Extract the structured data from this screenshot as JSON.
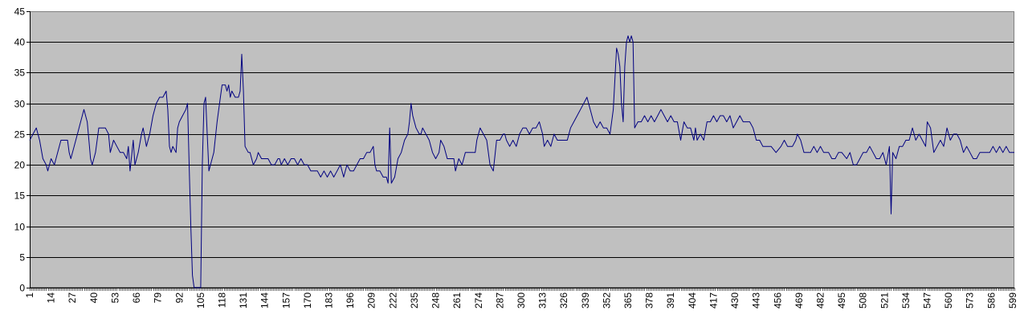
{
  "chart_data": {
    "type": "line",
    "title": "",
    "xlabel": "",
    "ylabel": "",
    "xlim": [
      1,
      600
    ],
    "ylim": [
      0,
      45
    ],
    "y_ticks": [
      0,
      5,
      10,
      15,
      20,
      25,
      30,
      35,
      40,
      45
    ],
    "x_tick_labels": [
      1,
      14,
      27,
      40,
      53,
      66,
      79,
      92,
      105,
      118,
      131,
      144,
      157,
      170,
      183,
      196,
      209,
      222,
      235,
      248,
      261,
      274,
      287,
      300,
      313,
      326,
      339,
      352,
      365,
      378,
      391,
      404,
      417,
      430,
      443,
      456,
      469,
      482,
      495,
      508,
      521,
      534,
      547,
      560,
      573,
      586,
      599
    ],
    "x_tick_step": 1,
    "x_label_step": 13,
    "grid": "horizontal",
    "legend": "none",
    "plot_background": "#c0c0c0",
    "line_color": "#000080",
    "series_keypoints": [
      [
        1,
        24
      ],
      [
        3,
        25
      ],
      [
        5,
        26
      ],
      [
        7,
        24
      ],
      [
        9,
        21
      ],
      [
        11,
        20
      ],
      [
        12,
        19
      ],
      [
        14,
        21
      ],
      [
        16,
        20
      ],
      [
        18,
        22
      ],
      [
        20,
        24
      ],
      [
        22,
        24
      ],
      [
        24,
        24
      ],
      [
        25,
        22
      ],
      [
        26,
        21
      ],
      [
        28,
        23
      ],
      [
        30,
        25
      ],
      [
        32,
        27
      ],
      [
        34,
        29
      ],
      [
        36,
        27
      ],
      [
        37,
        24
      ],
      [
        38,
        21
      ],
      [
        39,
        20
      ],
      [
        41,
        22
      ],
      [
        43,
        26
      ],
      [
        45,
        26
      ],
      [
        47,
        26
      ],
      [
        49,
        25
      ],
      [
        50,
        22
      ],
      [
        52,
        24
      ],
      [
        54,
        23
      ],
      [
        56,
        22
      ],
      [
        58,
        22
      ],
      [
        60,
        21
      ],
      [
        61,
        23
      ],
      [
        62,
        19
      ],
      [
        64,
        24
      ],
      [
        65,
        20
      ],
      [
        67,
        22
      ],
      [
        69,
        25
      ],
      [
        70,
        26
      ],
      [
        72,
        23
      ],
      [
        74,
        25
      ],
      [
        76,
        28
      ],
      [
        78,
        30
      ],
      [
        80,
        31
      ],
      [
        82,
        31
      ],
      [
        84,
        32
      ],
      [
        85,
        29
      ],
      [
        86,
        23
      ],
      [
        87,
        22
      ],
      [
        88,
        23
      ],
      [
        90,
        22
      ],
      [
        91,
        26
      ],
      [
        92,
        27
      ],
      [
        94,
        28
      ],
      [
        96,
        29
      ],
      [
        97,
        30
      ],
      [
        98,
        20
      ],
      [
        99,
        10
      ],
      [
        100,
        2
      ],
      [
        101,
        0
      ],
      [
        102,
        0
      ],
      [
        103,
        0
      ],
      [
        104,
        0
      ],
      [
        105,
        0
      ],
      [
        106,
        20
      ],
      [
        107,
        30
      ],
      [
        108,
        31
      ],
      [
        109,
        25
      ],
      [
        110,
        19
      ],
      [
        111,
        20
      ],
      [
        113,
        22
      ],
      [
        115,
        27
      ],
      [
        117,
        31
      ],
      [
        118,
        33
      ],
      [
        120,
        33
      ],
      [
        121,
        32
      ],
      [
        122,
        33
      ],
      [
        123,
        31
      ],
      [
        124,
        32
      ],
      [
        126,
        31
      ],
      [
        128,
        31
      ],
      [
        129,
        32
      ],
      [
        130,
        38
      ],
      [
        131,
        32
      ],
      [
        132,
        23
      ],
      [
        134,
        22
      ],
      [
        135,
        22
      ],
      [
        137,
        20
      ],
      [
        139,
        21
      ],
      [
        140,
        22
      ],
      [
        142,
        21
      ],
      [
        146,
        21
      ],
      [
        148,
        20
      ],
      [
        150,
        20
      ],
      [
        152,
        21
      ],
      [
        153,
        21
      ],
      [
        154,
        20
      ],
      [
        156,
        21
      ],
      [
        158,
        20
      ],
      [
        160,
        21
      ],
      [
        162,
        21
      ],
      [
        164,
        20
      ],
      [
        166,
        21
      ],
      [
        168,
        20
      ],
      [
        170,
        20
      ],
      [
        172,
        19
      ],
      [
        176,
        19
      ],
      [
        178,
        18
      ],
      [
        180,
        19
      ],
      [
        182,
        18
      ],
      [
        184,
        19
      ],
      [
        186,
        18
      ],
      [
        188,
        19
      ],
      [
        190,
        20
      ],
      [
        192,
        18
      ],
      [
        194,
        20
      ],
      [
        196,
        19
      ],
      [
        198,
        19
      ],
      [
        200,
        20
      ],
      [
        202,
        21
      ],
      [
        204,
        21
      ],
      [
        206,
        22
      ],
      [
        208,
        22
      ],
      [
        210,
        23
      ],
      [
        211,
        20
      ],
      [
        212,
        19
      ],
      [
        214,
        19
      ],
      [
        216,
        18
      ],
      [
        218,
        18
      ],
      [
        219,
        17
      ],
      [
        220,
        26
      ],
      [
        221,
        17
      ],
      [
        223,
        18
      ],
      [
        225,
        21
      ],
      [
        227,
        22
      ],
      [
        229,
        24
      ],
      [
        231,
        25
      ],
      [
        232,
        27
      ],
      [
        233,
        30
      ],
      [
        234,
        28
      ],
      [
        236,
        26
      ],
      [
        238,
        25
      ],
      [
        239,
        25
      ],
      [
        240,
        26
      ],
      [
        242,
        25
      ],
      [
        244,
        24
      ],
      [
        246,
        22
      ],
      [
        248,
        21
      ],
      [
        250,
        22
      ],
      [
        251,
        24
      ],
      [
        253,
        23
      ],
      [
        255,
        21
      ],
      [
        257,
        21
      ],
      [
        259,
        21
      ],
      [
        260,
        19
      ],
      [
        262,
        21
      ],
      [
        264,
        20
      ],
      [
        266,
        22
      ],
      [
        270,
        22
      ],
      [
        272,
        22
      ],
      [
        273,
        24
      ],
      [
        275,
        26
      ],
      [
        277,
        25
      ],
      [
        279,
        24
      ],
      [
        281,
        20
      ],
      [
        283,
        19
      ],
      [
        285,
        24
      ],
      [
        287,
        24
      ],
      [
        289,
        25
      ],
      [
        290,
        25
      ],
      [
        291,
        24
      ],
      [
        293,
        23
      ],
      [
        295,
        24
      ],
      [
        297,
        23
      ],
      [
        299,
        25
      ],
      [
        301,
        26
      ],
      [
        303,
        26
      ],
      [
        305,
        25
      ],
      [
        307,
        26
      ],
      [
        309,
        26
      ],
      [
        311,
        27
      ],
      [
        313,
        25
      ],
      [
        314,
        23
      ],
      [
        316,
        24
      ],
      [
        318,
        23
      ],
      [
        320,
        25
      ],
      [
        322,
        24
      ],
      [
        324,
        24
      ],
      [
        326,
        24
      ],
      [
        328,
        24
      ],
      [
        330,
        26
      ],
      [
        332,
        27
      ],
      [
        334,
        28
      ],
      [
        336,
        29
      ],
      [
        338,
        30
      ],
      [
        340,
        31
      ],
      [
        342,
        29
      ],
      [
        344,
        27
      ],
      [
        346,
        26
      ],
      [
        348,
        27
      ],
      [
        350,
        26
      ],
      [
        352,
        26
      ],
      [
        354,
        25
      ],
      [
        356,
        29
      ],
      [
        358,
        39
      ],
      [
        359,
        38
      ],
      [
        360,
        36
      ],
      [
        361,
        30
      ],
      [
        362,
        27
      ],
      [
        363,
        36
      ],
      [
        364,
        40
      ],
      [
        365,
        41
      ],
      [
        366,
        40
      ],
      [
        367,
        41
      ],
      [
        368,
        40
      ],
      [
        369,
        26
      ],
      [
        371,
        27
      ],
      [
        373,
        27
      ],
      [
        375,
        28
      ],
      [
        377,
        27
      ],
      [
        379,
        28
      ],
      [
        381,
        27
      ],
      [
        383,
        28
      ],
      [
        385,
        29
      ],
      [
        387,
        28
      ],
      [
        389,
        27
      ],
      [
        391,
        28
      ],
      [
        393,
        27
      ],
      [
        395,
        27
      ],
      [
        397,
        24
      ],
      [
        399,
        27
      ],
      [
        401,
        26
      ],
      [
        403,
        26
      ],
      [
        405,
        24
      ],
      [
        406,
        26
      ],
      [
        407,
        24
      ],
      [
        409,
        25
      ],
      [
        411,
        24
      ],
      [
        413,
        27
      ],
      [
        415,
        27
      ],
      [
        417,
        28
      ],
      [
        419,
        27
      ],
      [
        421,
        28
      ],
      [
        423,
        28
      ],
      [
        425,
        27
      ],
      [
        427,
        28
      ],
      [
        429,
        26
      ],
      [
        431,
        27
      ],
      [
        433,
        28
      ],
      [
        435,
        27
      ],
      [
        439,
        27
      ],
      [
        441,
        26
      ],
      [
        443,
        24
      ],
      [
        445,
        24
      ],
      [
        447,
        23
      ],
      [
        449,
        23
      ],
      [
        452,
        23
      ],
      [
        455,
        22
      ],
      [
        458,
        23
      ],
      [
        460,
        24
      ],
      [
        462,
        23
      ],
      [
        465,
        23
      ],
      [
        467,
        24
      ],
      [
        468,
        25
      ],
      [
        470,
        24
      ],
      [
        472,
        22
      ],
      [
        476,
        22
      ],
      [
        478,
        23
      ],
      [
        480,
        22
      ],
      [
        482,
        23
      ],
      [
        484,
        22
      ],
      [
        487,
        22
      ],
      [
        489,
        21
      ],
      [
        491,
        21
      ],
      [
        493,
        22
      ],
      [
        495,
        22
      ],
      [
        498,
        21
      ],
      [
        500,
        22
      ],
      [
        502,
        20
      ],
      [
        504,
        20
      ],
      [
        506,
        21
      ],
      [
        508,
        22
      ],
      [
        510,
        22
      ],
      [
        512,
        23
      ],
      [
        514,
        22
      ],
      [
        516,
        21
      ],
      [
        518,
        21
      ],
      [
        520,
        22
      ],
      [
        522,
        20
      ],
      [
        524,
        23
      ],
      [
        525,
        12
      ],
      [
        526,
        22
      ],
      [
        528,
        21
      ],
      [
        530,
        23
      ],
      [
        532,
        23
      ],
      [
        534,
        24
      ],
      [
        536,
        24
      ],
      [
        538,
        26
      ],
      [
        540,
        24
      ],
      [
        542,
        25
      ],
      [
        544,
        24
      ],
      [
        546,
        23
      ],
      [
        547,
        27
      ],
      [
        549,
        26
      ],
      [
        551,
        22
      ],
      [
        553,
        23
      ],
      [
        555,
        24
      ],
      [
        557,
        23
      ],
      [
        559,
        26
      ],
      [
        561,
        24
      ],
      [
        563,
        25
      ],
      [
        565,
        25
      ],
      [
        567,
        24
      ],
      [
        569,
        22
      ],
      [
        571,
        23
      ],
      [
        573,
        22
      ],
      [
        575,
        21
      ],
      [
        577,
        21
      ],
      [
        579,
        22
      ],
      [
        582,
        22
      ],
      [
        585,
        22
      ],
      [
        587,
        23
      ],
      [
        589,
        22
      ],
      [
        591,
        23
      ],
      [
        593,
        22
      ],
      [
        595,
        23
      ],
      [
        597,
        22
      ],
      [
        600,
        22
      ]
    ]
  }
}
